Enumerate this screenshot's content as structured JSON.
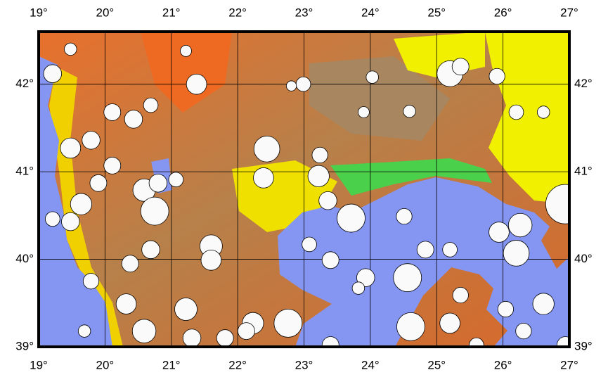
{
  "map": {
    "xlim": [
      19,
      27
    ],
    "ylim": [
      39,
      42.6
    ],
    "xticks": [
      {
        "value": 19,
        "label": "19°"
      },
      {
        "value": 20,
        "label": "20°"
      },
      {
        "value": 21,
        "label": "21°"
      },
      {
        "value": 22,
        "label": "22°"
      },
      {
        "value": 23,
        "label": "23°"
      },
      {
        "value": 24,
        "label": "24°"
      },
      {
        "value": 25,
        "label": "25°"
      },
      {
        "value": 26,
        "label": "26°"
      },
      {
        "value": 27,
        "label": "27°"
      }
    ],
    "yticks": [
      {
        "value": 39,
        "label": "39°"
      },
      {
        "value": 40,
        "label": "40°"
      },
      {
        "value": 41,
        "label": "41°"
      },
      {
        "value": 42,
        "label": "42°"
      }
    ],
    "events": [
      {
        "lon": 19.21,
        "lat": 42.12,
        "mag": 5.6
      },
      {
        "lon": 19.48,
        "lat": 42.4,
        "mag": 5.1
      },
      {
        "lon": 21.38,
        "lat": 42.0,
        "mag": 5.8
      },
      {
        "lon": 21.22,
        "lat": 42.38,
        "mag": 5.0
      },
      {
        "lon": 22.99,
        "lat": 42.0,
        "mag": 5.3
      },
      {
        "lon": 22.81,
        "lat": 41.98,
        "mag": 4.9
      },
      {
        "lon": 25.2,
        "lat": 42.12,
        "mag": 6.3
      },
      {
        "lon": 25.36,
        "lat": 42.2,
        "mag": 5.5
      },
      {
        "lon": 25.91,
        "lat": 42.09,
        "mag": 5.4
      },
      {
        "lon": 26.2,
        "lat": 41.68,
        "mag": 5.3
      },
      {
        "lon": 26.61,
        "lat": 41.68,
        "mag": 5.1
      },
      {
        "lon": 24.03,
        "lat": 42.08,
        "mag": 5.1
      },
      {
        "lon": 24.59,
        "lat": 41.69,
        "mag": 5.1
      },
      {
        "lon": 23.9,
        "lat": 41.68,
        "mag": 5.0
      },
      {
        "lon": 22.44,
        "lat": 41.26,
        "mag": 6.3
      },
      {
        "lon": 23.22,
        "lat": 40.95,
        "mag": 5.9
      },
      {
        "lon": 22.39,
        "lat": 40.93,
        "mag": 5.8
      },
      {
        "lon": 23.36,
        "lat": 40.67,
        "mag": 5.6
      },
      {
        "lon": 23.71,
        "lat": 40.47,
        "mag": 6.5
      },
      {
        "lon": 24.51,
        "lat": 40.49,
        "mag": 5.4
      },
      {
        "lon": 26.94,
        "lat": 40.63,
        "mag": 7.5
      },
      {
        "lon": 25.94,
        "lat": 40.31,
        "mag": 5.8
      },
      {
        "lon": 26.26,
        "lat": 40.39,
        "mag": 6.1
      },
      {
        "lon": 26.2,
        "lat": 40.07,
        "mag": 6.3
      },
      {
        "lon": 25.2,
        "lat": 40.11,
        "mag": 5.3
      },
      {
        "lon": 24.83,
        "lat": 40.11,
        "mag": 5.5
      },
      {
        "lon": 24.56,
        "lat": 39.79,
        "mag": 6.5
      },
      {
        "lon": 23.93,
        "lat": 39.79,
        "mag": 5.6
      },
      {
        "lon": 23.4,
        "lat": 39.99,
        "mag": 5.5
      },
      {
        "lon": 23.08,
        "lat": 40.17,
        "mag": 5.3
      },
      {
        "lon": 23.82,
        "lat": 39.67,
        "mag": 5.1
      },
      {
        "lon": 24.61,
        "lat": 39.23,
        "mag": 6.5
      },
      {
        "lon": 25.36,
        "lat": 39.59,
        "mag": 5.4
      },
      {
        "lon": 25.2,
        "lat": 39.27,
        "mag": 5.8
      },
      {
        "lon": 26.04,
        "lat": 39.43,
        "mag": 5.4
      },
      {
        "lon": 26.61,
        "lat": 39.49,
        "mag": 5.9
      },
      {
        "lon": 26.31,
        "lat": 39.18,
        "mag": 5.4
      },
      {
        "lon": 26.94,
        "lat": 39.02,
        "mag": 5.5
      },
      {
        "lon": 25.6,
        "lat": 39.02,
        "mag": 5.3
      },
      {
        "lon": 23.4,
        "lat": 39.02,
        "mag": 5.5
      },
      {
        "lon": 22.76,
        "lat": 39.27,
        "mag": 6.5
      },
      {
        "lon": 22.23,
        "lat": 39.27,
        "mag": 5.9
      },
      {
        "lon": 21.81,
        "lat": 39.1,
        "mag": 5.5
      },
      {
        "lon": 21.22,
        "lat": 39.43,
        "mag": 6.0
      },
      {
        "lon": 21.31,
        "lat": 39.1,
        "mag": 5.6
      },
      {
        "lon": 20.59,
        "lat": 39.18,
        "mag": 6.1
      },
      {
        "lon": 20.32,
        "lat": 39.49,
        "mag": 5.8
      },
      {
        "lon": 19.79,
        "lat": 39.75,
        "mag": 5.4
      },
      {
        "lon": 19.69,
        "lat": 39.18,
        "mag": 5.1
      },
      {
        "lon": 19.48,
        "lat": 40.43,
        "mag": 5.6
      },
      {
        "lon": 19.21,
        "lat": 40.46,
        "mag": 5.3
      },
      {
        "lon": 19.64,
        "lat": 40.63,
        "mag": 5.9
      },
      {
        "lon": 19.9,
        "lat": 40.87,
        "mag": 5.5
      },
      {
        "lon": 20.11,
        "lat": 41.07,
        "mag": 5.5
      },
      {
        "lon": 19.79,
        "lat": 41.36,
        "mag": 5.6
      },
      {
        "lon": 19.48,
        "lat": 41.27,
        "mag": 5.8
      },
      {
        "lon": 20.11,
        "lat": 41.68,
        "mag": 5.5
      },
      {
        "lon": 20.43,
        "lat": 41.6,
        "mag": 5.6
      },
      {
        "lon": 20.69,
        "lat": 41.76,
        "mag": 5.3
      },
      {
        "lon": 20.59,
        "lat": 40.79,
        "mag": 6.0
      },
      {
        "lon": 20.75,
        "lat": 40.55,
        "mag": 6.5
      },
      {
        "lon": 20.69,
        "lat": 40.11,
        "mag": 5.6
      },
      {
        "lon": 20.38,
        "lat": 39.95,
        "mag": 5.5
      },
      {
        "lon": 21.07,
        "lat": 40.91,
        "mag": 5.3
      },
      {
        "lon": 21.6,
        "lat": 40.15,
        "mag": 6.0
      },
      {
        "lon": 22.13,
        "lat": 39.18,
        "mag": 5.5
      },
      {
        "lon": 20.8,
        "lat": 40.87,
        "mag": 5.6
      },
      {
        "lon": 21.6,
        "lat": 39.99,
        "mag": 5.8
      },
      {
        "lon": 23.24,
        "lat": 41.19,
        "mag": 5.4
      }
    ]
  }
}
